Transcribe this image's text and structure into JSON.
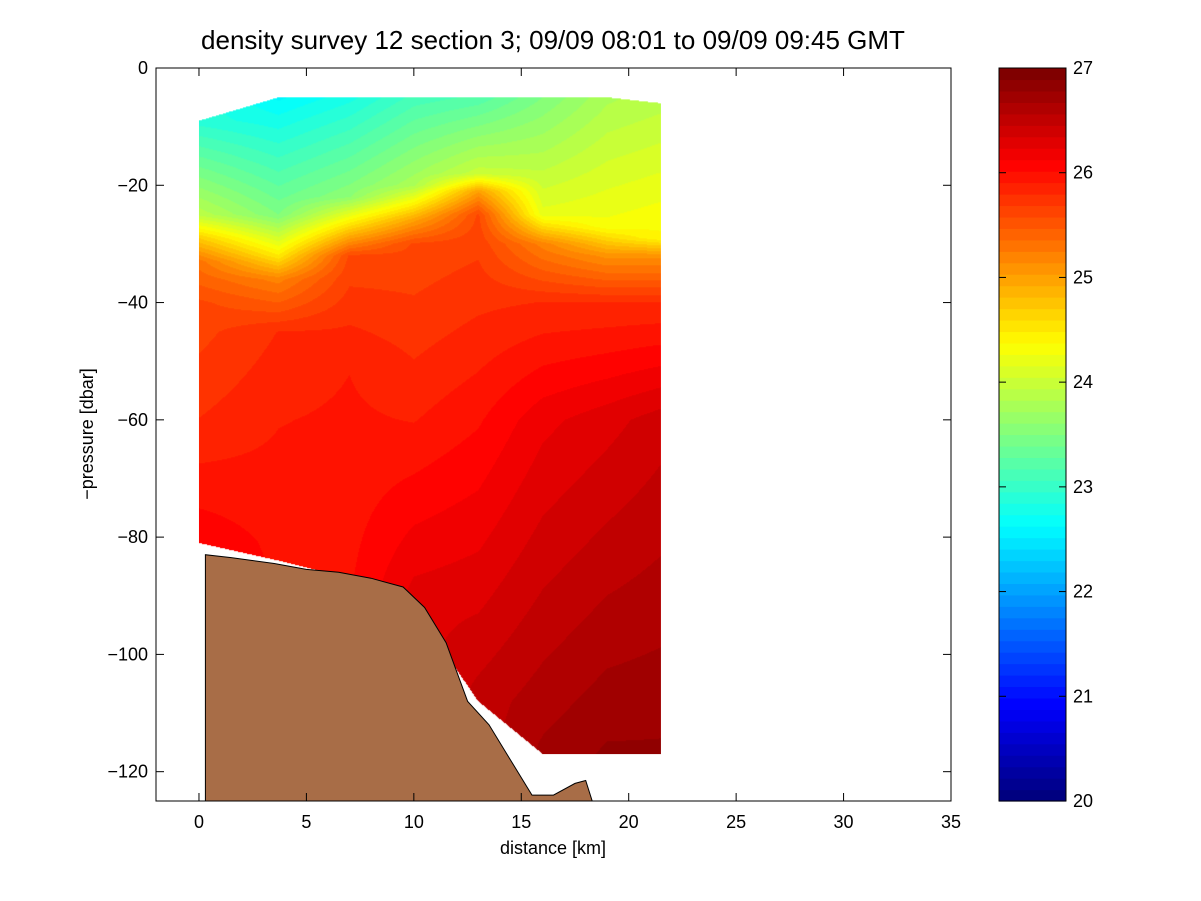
{
  "chart_data": {
    "type": "heatmap",
    "title": "density survey 12 section 3; 09/09 08:01 to 09/09 09:45 GMT",
    "xlabel": "distance [km]",
    "ylabel": "−pressure [dbar]",
    "xlim": [
      -2,
      35
    ],
    "ylim": [
      -125,
      0
    ],
    "xticks": [
      0,
      5,
      10,
      15,
      20,
      25,
      30,
      35
    ],
    "yticks": [
      0,
      -20,
      -40,
      -60,
      -80,
      -100,
      -120
    ],
    "grid": false,
    "colorbar": {
      "range": [
        20,
        27
      ],
      "ticks": [
        20,
        21,
        22,
        23,
        24,
        25,
        26,
        27
      ],
      "colormap": "jet"
    },
    "seafloor_color": "#a86d47",
    "density_profiles": [
      {
        "x": 0,
        "top": -9,
        "bottom": -81,
        "values": [
          [
            -9,
            22.9
          ],
          [
            -25,
            23.9
          ],
          [
            -29,
            24.7
          ],
          [
            -33,
            25.3
          ],
          [
            -40,
            25.6
          ],
          [
            -60,
            25.8
          ],
          [
            -81,
            26.1
          ]
        ]
      },
      {
        "x": 3.7,
        "top": -5,
        "bottom": -84,
        "values": [
          [
            -5,
            22.6
          ],
          [
            -25,
            23.5
          ],
          [
            -32,
            24.5
          ],
          [
            -36,
            25.2
          ],
          [
            -45,
            25.8
          ],
          [
            -60,
            25.9
          ],
          [
            -84,
            26.0
          ]
        ]
      },
      {
        "x": 7,
        "top": -5,
        "bottom": -87,
        "values": [
          [
            -5,
            22.8
          ],
          [
            -22,
            23.6
          ],
          [
            -28,
            24.8
          ],
          [
            -32,
            25.6
          ],
          [
            -50,
            25.9
          ],
          [
            -87,
            26.0
          ]
        ]
      },
      {
        "x": 10,
        "top": -5,
        "bottom": -92,
        "values": [
          [
            -5,
            23.1
          ],
          [
            -20,
            23.8
          ],
          [
            -26,
            25.0
          ],
          [
            -30,
            25.6
          ],
          [
            -60,
            25.9
          ],
          [
            -92,
            26.3
          ]
        ]
      },
      {
        "x": 13,
        "top": -5,
        "bottom": -108,
        "values": [
          [
            -5,
            23.2
          ],
          [
            -18,
            24.0
          ],
          [
            -21,
            25.0
          ],
          [
            -25,
            25.6
          ],
          [
            -60,
            26.0
          ],
          [
            -108,
            26.5
          ]
        ]
      },
      {
        "x": 16,
        "top": -5,
        "bottom": -117,
        "values": [
          [
            -5,
            23.5
          ],
          [
            -25,
            24.2
          ],
          [
            -30,
            25.2
          ],
          [
            -40,
            25.8
          ],
          [
            -60,
            26.2
          ],
          [
            -117,
            26.7
          ]
        ]
      },
      {
        "x": 19,
        "top": -5,
        "bottom": -117,
        "values": [
          [
            -5,
            23.8
          ],
          [
            -27,
            24.3
          ],
          [
            -32,
            25.1
          ],
          [
            -40,
            25.8
          ],
          [
            -60,
            26.3
          ],
          [
            -117,
            26.8
          ]
        ]
      },
      {
        "x": 21.5,
        "top": -6,
        "bottom": -117,
        "values": [
          [
            -6,
            23.9
          ],
          [
            -29,
            24.4
          ],
          [
            -32,
            25.1
          ],
          [
            -40,
            25.8
          ],
          [
            -60,
            26.4
          ],
          [
            -117,
            26.8
          ]
        ]
      }
    ],
    "seafloor": [
      [
        0.3,
        -125
      ],
      [
        0.3,
        -83
      ],
      [
        1.5,
        -83.5
      ],
      [
        3.5,
        -84.5
      ],
      [
        5,
        -85.5
      ],
      [
        6.5,
        -86
      ],
      [
        8,
        -87
      ],
      [
        9.5,
        -88.5
      ],
      [
        10.5,
        -92
      ],
      [
        11.5,
        -98
      ],
      [
        12.5,
        -108
      ],
      [
        13.5,
        -112
      ],
      [
        14.5,
        -118
      ],
      [
        15.5,
        -124
      ],
      [
        16.5,
        -124
      ],
      [
        17.5,
        -122
      ],
      [
        18,
        -121.5
      ],
      [
        18.3,
        -125
      ]
    ]
  }
}
